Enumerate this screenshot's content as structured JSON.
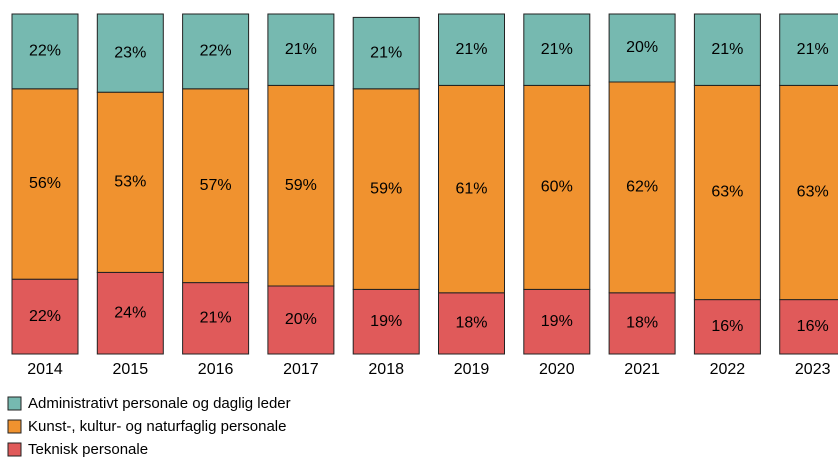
{
  "chart_data": {
    "type": "bar",
    "stacked": true,
    "categories": [
      "2014",
      "2015",
      "2016",
      "2017",
      "2018",
      "2019",
      "2020",
      "2021",
      "2022",
      "2023"
    ],
    "series": [
      {
        "name": "Administrativt personale og daglig leder",
        "color": "#76b9b0",
        "values": [
          22,
          23,
          22,
          21,
          21,
          21,
          21,
          20,
          21,
          21
        ],
        "value_labels": [
          "22%",
          "23%",
          "22%",
          "21%",
          "21%",
          "21%",
          "21%",
          "20%",
          "21%",
          "21%"
        ]
      },
      {
        "name": "Kunst-, kultur- og naturfaglig personale",
        "color": "#f0922f",
        "values": [
          56,
          53,
          57,
          59,
          59,
          61,
          60,
          62,
          63,
          63
        ],
        "value_labels": [
          "56%",
          "53%",
          "57%",
          "59%",
          "59%",
          "61%",
          "60%",
          "62%",
          "63%",
          "63%"
        ]
      },
      {
        "name": "Teknisk personale",
        "color": "#e05a5a",
        "values": [
          22,
          24,
          21,
          20,
          19,
          18,
          19,
          18,
          16,
          16
        ],
        "value_labels": [
          "22%",
          "24%",
          "21%",
          "20%",
          "19%",
          "18%",
          "19%",
          "18%",
          "16%",
          "16%"
        ]
      }
    ],
    "legend": "bottom-left"
  }
}
